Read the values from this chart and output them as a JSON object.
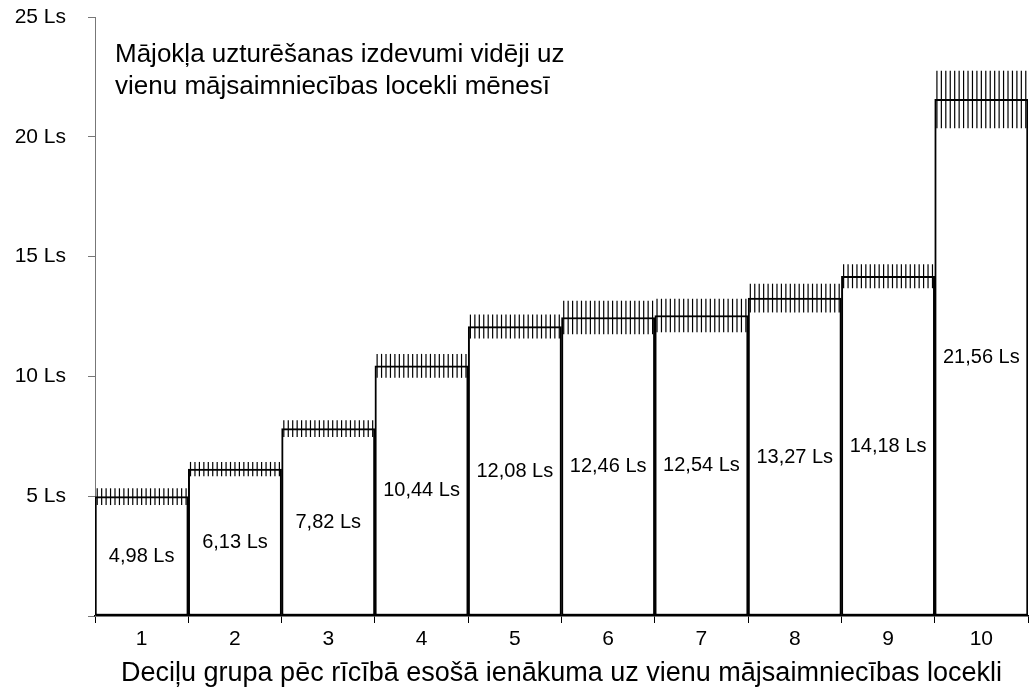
{
  "chart_data": {
    "type": "bar",
    "title": "Mājokļa uzturēšanas izdevumi vidēji uz vienu mājsaimniecības locekli mēnesī",
    "xlabel": "Deciļu grupa pēc rīcībā esošā ienākuma uz vienu mājsaimniecības locekli",
    "categories": [
      "1",
      "2",
      "3",
      "4",
      "5",
      "6",
      "7",
      "8",
      "9",
      "10"
    ],
    "values": [
      4.98,
      6.13,
      7.82,
      10.44,
      12.08,
      12.46,
      12.54,
      13.27,
      14.18,
      21.56
    ],
    "errors": [
      0.35,
      0.3,
      0.35,
      0.5,
      0.5,
      0.7,
      0.7,
      0.6,
      0.5,
      1.2
    ],
    "value_labels": [
      "4,98 Ls",
      "6,13 Ls",
      "7,82 Ls",
      "10,44 Ls",
      "12,08 Ls",
      "12,46 Ls",
      "12,54 Ls",
      "13,27 Ls",
      "14,18 Ls",
      "21,56 Ls"
    ],
    "color": "#ffffff",
    "ylim": [
      0,
      25
    ],
    "yticks": [
      {
        "value": 0,
        "label": null
      },
      {
        "value": 5,
        "label": "5 Ls"
      },
      {
        "value": 10,
        "label": "10 Ls"
      },
      {
        "value": 15,
        "label": "15 Ls"
      },
      {
        "value": 20,
        "label": "20 Ls"
      },
      {
        "value": 25,
        "label": "25 Ls"
      }
    ]
  }
}
